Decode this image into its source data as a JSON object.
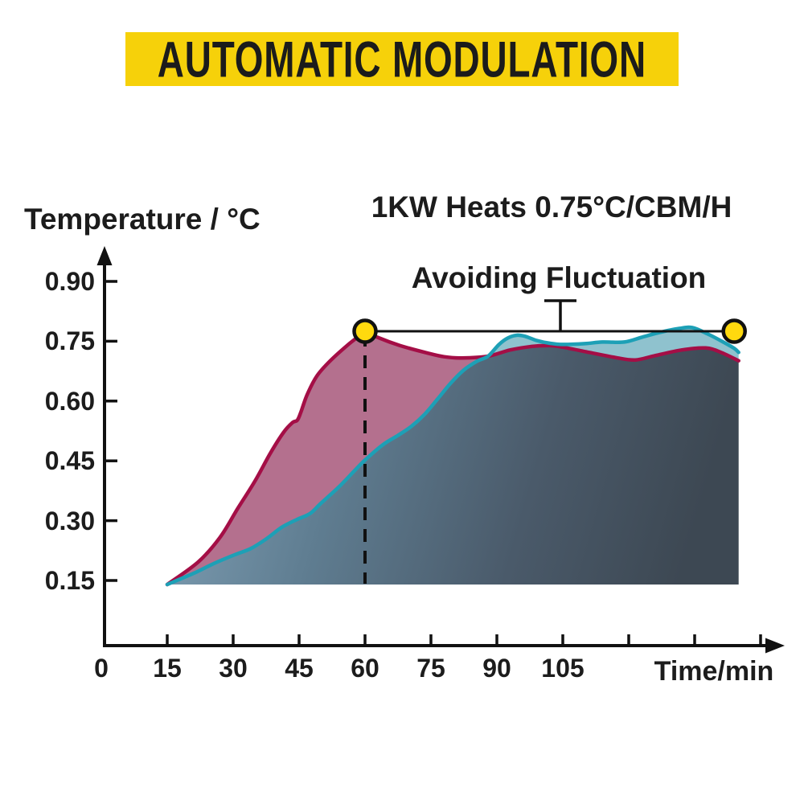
{
  "banner": {
    "text": "AUTOMATIC MODULATION",
    "bg_color": "#F6D10A",
    "text_color": "#1b1b1b"
  },
  "chart": {
    "y_axis_label": "Temperature / °C",
    "title": "1KW Heats 0.75°C/CBM/H",
    "annotation": "Avoiding Fluctuation",
    "x_axis_label": "Time/min"
  },
  "chart_data": {
    "type": "area",
    "title": "1KW Heats 0.75°C/CBM/H",
    "xlabel": "Time/min",
    "ylabel": "Temperature / °C",
    "x_labeled_ticks": [
      0,
      15,
      30,
      45,
      60,
      75,
      90,
      105
    ],
    "x_all_ticks": [
      15,
      30,
      45,
      60,
      75,
      90,
      105,
      120,
      135,
      150
    ],
    "y_ticks": [
      0.9,
      0.75,
      0.6,
      0.45,
      0.3,
      0.15
    ],
    "xlim": [
      0,
      155
    ],
    "ylim": [
      0.14,
      0.95
    ],
    "baseline_temp": 0.14,
    "grid": false,
    "legend": "none",
    "annotation_text": "Avoiding Fluctuation",
    "reference_line": {
      "temp": 0.775,
      "t_start": 60,
      "t_end": 144,
      "color": "#111111"
    },
    "markers": [
      {
        "t": 60,
        "temp": 0.775
      },
      {
        "t": 144,
        "temp": 0.775
      }
    ],
    "marker_color": "#FFD90E",
    "marker_stroke": "#111111",
    "dashed_guide": {
      "t": 60,
      "from_temp": 0.775,
      "to_temp": 0.14
    },
    "cross_point": [
      88,
      0.7125
    ],
    "area_gradient": [
      "#83A3B8",
      "#5F7D91",
      "#4A5A6A",
      "#3D4853"
    ],
    "series": [
      {
        "name": "rapid-heating-curve",
        "line_color": "#A40E46",
        "fill_color": "#B4708E",
        "points": [
          [
            15,
            0.14
          ],
          [
            22,
            0.196
          ],
          [
            27,
            0.258
          ],
          [
            31,
            0.33
          ],
          [
            35,
            0.4
          ],
          [
            38.5,
            0.47
          ],
          [
            41.5,
            0.522
          ],
          [
            43.5,
            0.546
          ],
          [
            44.6,
            0.552
          ],
          [
            45.4,
            0.572
          ],
          [
            46.8,
            0.615
          ],
          [
            49,
            0.662
          ],
          [
            52,
            0.7
          ],
          [
            56,
            0.74
          ],
          [
            59,
            0.766
          ],
          [
            60,
            0.775
          ],
          [
            63,
            0.759
          ],
          [
            68,
            0.739
          ],
          [
            74,
            0.721
          ],
          [
            78,
            0.711
          ],
          [
            82,
            0.708
          ],
          [
            88,
            0.7125
          ],
          [
            93,
            0.728
          ],
          [
            98,
            0.737
          ],
          [
            102,
            0.739
          ],
          [
            105,
            0.735
          ],
          [
            111,
            0.722
          ],
          [
            117,
            0.709
          ],
          [
            121.5,
            0.703
          ],
          [
            126,
            0.714
          ],
          [
            132,
            0.728
          ],
          [
            137.5,
            0.733
          ],
          [
            141,
            0.722
          ],
          [
            145,
            0.701
          ]
        ]
      },
      {
        "name": "modulated-heating-curve",
        "line_color": "#1DA0B6",
        "fill_color": "#8FC2CE",
        "points": [
          [
            15,
            0.14
          ],
          [
            21,
            0.168
          ],
          [
            25.5,
            0.192
          ],
          [
            30,
            0.213
          ],
          [
            34,
            0.23
          ],
          [
            37.5,
            0.254
          ],
          [
            41,
            0.283
          ],
          [
            44.5,
            0.303
          ],
          [
            47.5,
            0.318
          ],
          [
            50,
            0.344
          ],
          [
            54,
            0.384
          ],
          [
            57.5,
            0.424
          ],
          [
            60,
            0.452
          ],
          [
            64,
            0.49
          ],
          [
            67.5,
            0.514
          ],
          [
            70.5,
            0.536
          ],
          [
            73.5,
            0.566
          ],
          [
            76.5,
            0.605
          ],
          [
            79.5,
            0.645
          ],
          [
            82.5,
            0.678
          ],
          [
            85.5,
            0.7
          ],
          [
            88,
            0.7125
          ],
          [
            90.5,
            0.742
          ],
          [
            92.5,
            0.758
          ],
          [
            94.5,
            0.765
          ],
          [
            96.5,
            0.762
          ],
          [
            99,
            0.752
          ],
          [
            102,
            0.745
          ],
          [
            105,
            0.742
          ],
          [
            110,
            0.744
          ],
          [
            114,
            0.748
          ],
          [
            119,
            0.748
          ],
          [
            123,
            0.76
          ],
          [
            127,
            0.772
          ],
          [
            131.5,
            0.782
          ],
          [
            134.5,
            0.784
          ],
          [
            138,
            0.768
          ],
          [
            141.5,
            0.748
          ],
          [
            144,
            0.732
          ],
          [
            145,
            0.722
          ]
        ]
      }
    ]
  }
}
